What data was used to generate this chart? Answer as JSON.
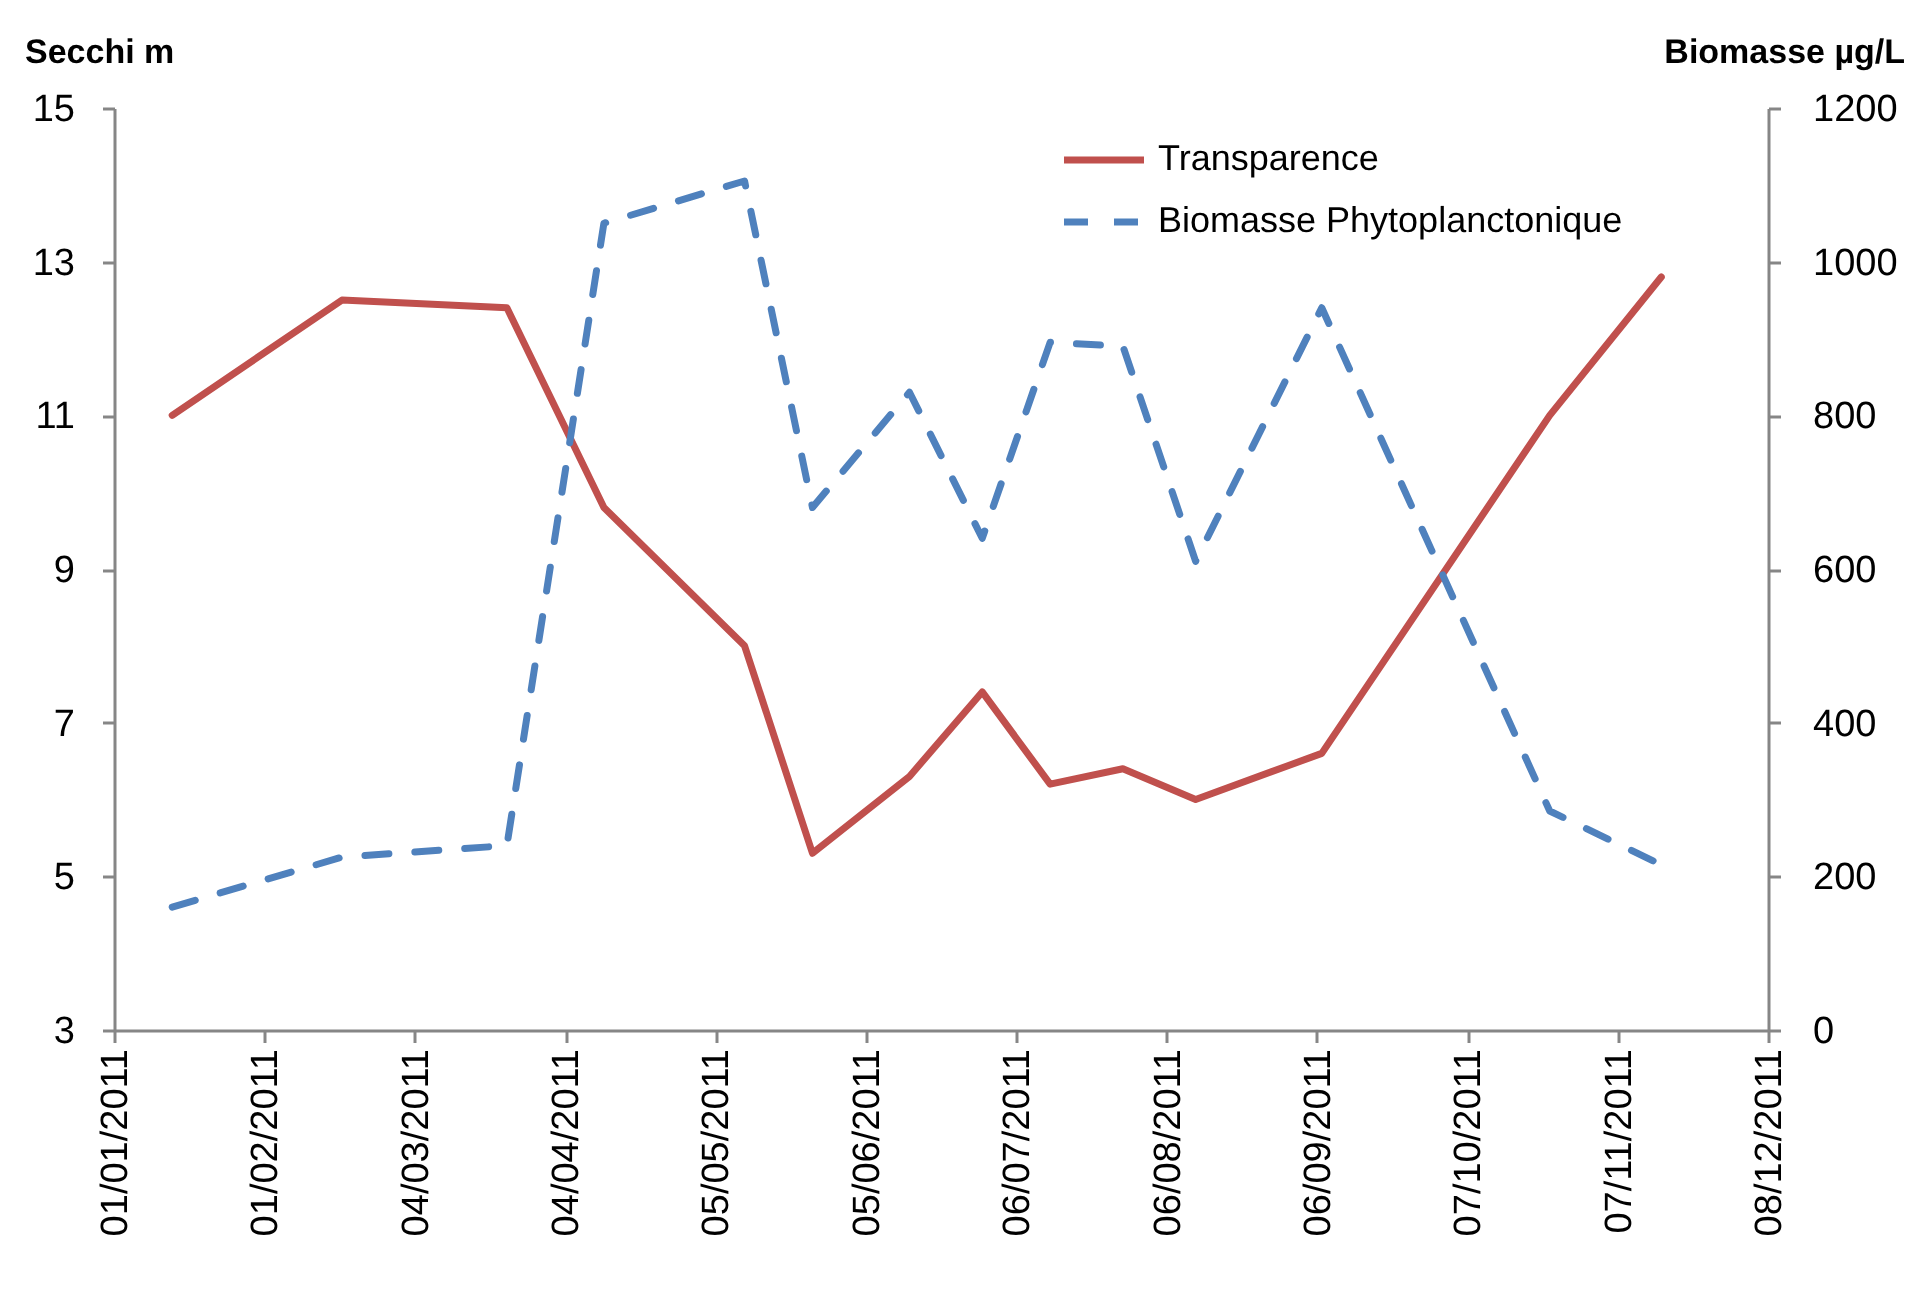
{
  "chart_data": {
    "type": "line",
    "ylabel": "Secchi m",
    "y2label": "Biomasse µg/L",
    "x": [
      "2011-01-13",
      "2011-02-17",
      "2011-03-23",
      "2011-04-12",
      "2011-05-11",
      "2011-05-25",
      "2011-06-14",
      "2011-06-29",
      "2011-07-13",
      "2011-07-28",
      "2011-08-12",
      "2011-09-07",
      "2011-10-24",
      "2011-11-16"
    ],
    "series": [
      {
        "name": "Transparence",
        "color": "#c0504d",
        "line_style": "solid",
        "values": [
          11.0,
          12.5,
          12.4,
          9.8,
          8.0,
          5.3,
          6.3,
          7.4,
          6.2,
          6.4,
          6.0,
          6.6,
          11.0,
          12.8
        ]
      },
      {
        "name": "Biomasse Phytoplanctonique",
        "color": "#4f81bd",
        "line_style": "dashed",
        "axis": "y2",
        "values": [
          160,
          225,
          240,
          1050,
          1105,
          680,
          830,
          640,
          895,
          890,
          610,
          940,
          285,
          215
        ]
      }
    ],
    "xlim": [
      "2011-01-01",
      "2011-12-08"
    ],
    "xticks": [
      {
        "value": "2011-01-01",
        "label": "01/01/2011"
      },
      {
        "value": "2011-02-01",
        "label": "01/02/2011"
      },
      {
        "value": "2011-03-04",
        "label": "04/03/2011"
      },
      {
        "value": "2011-04-04",
        "label": "04/04/2011"
      },
      {
        "value": "2011-05-05",
        "label": "05/05/2011"
      },
      {
        "value": "2011-06-05",
        "label": "05/06/2011"
      },
      {
        "value": "2011-07-06",
        "label": "06/07/2011"
      },
      {
        "value": "2011-08-06",
        "label": "06/08/2011"
      },
      {
        "value": "2011-09-06",
        "label": "06/09/2011"
      },
      {
        "value": "2011-10-07",
        "label": "07/10/2011"
      },
      {
        "value": "2011-11-07",
        "label": "07/11/2011"
      },
      {
        "value": "2011-12-08",
        "label": "08/12/2011"
      }
    ],
    "ylim": [
      3,
      15
    ],
    "yticks": [
      3,
      5,
      7,
      9,
      11,
      13,
      15
    ],
    "y2lim": [
      0,
      1200
    ],
    "y2ticks": [
      0,
      200,
      400,
      600,
      800,
      1000,
      1200
    ],
    "grid": false,
    "legend": "top right"
  }
}
